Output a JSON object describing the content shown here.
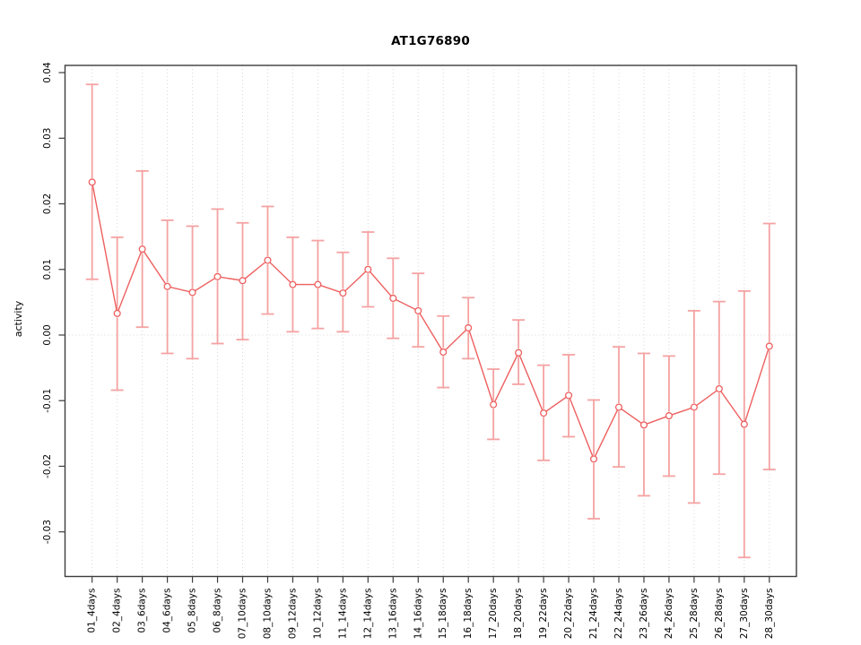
{
  "chart_data": {
    "type": "line",
    "title": "AT1G76890",
    "ylabel": "activity",
    "xlabel": "",
    "legend": "none",
    "grid": "dotted vertical line at each category; dotted horizontal line at y=0",
    "categories": [
      "01_4days",
      "02_4days",
      "03_6days",
      "04_6days",
      "05_8days",
      "06_8days",
      "07_10days",
      "08_10days",
      "09_12days",
      "10_12days",
      "11_14days",
      "12_14days",
      "13_16days",
      "14_16days",
      "15_18days",
      "16_18days",
      "17_20days",
      "18_20days",
      "19_22days",
      "20_22days",
      "21_24days",
      "22_24days",
      "23_26days",
      "24_26days",
      "25_28days",
      "26_28days",
      "27_30days",
      "28_30days"
    ],
    "series": [
      {
        "name": "activity",
        "marker": "open-circle",
        "values": [
          0.0233,
          0.0033,
          0.0131,
          0.0074,
          0.0065,
          0.0089,
          0.0083,
          0.0114,
          0.0077,
          0.0077,
          0.0064,
          0.01,
          0.0056,
          0.0037,
          -0.0026,
          0.0011,
          -0.0106,
          -0.0027,
          -0.0119,
          -0.0092,
          -0.0189,
          -0.011,
          -0.0137,
          -0.0123,
          -0.011,
          -0.0082,
          -0.0136,
          -0.0017
        ],
        "lower": [
          0.0085,
          -0.0084,
          0.0012,
          -0.0028,
          -0.0036,
          -0.0013,
          -0.0007,
          0.0032,
          0.0005,
          0.001,
          0.0005,
          0.0043,
          -0.0005,
          -0.0018,
          -0.008,
          -0.0036,
          -0.0159,
          -0.0075,
          -0.0191,
          -0.0155,
          -0.028,
          -0.0201,
          -0.0245,
          -0.0215,
          -0.0256,
          -0.0212,
          -0.0339,
          -0.0205
        ],
        "upper": [
          0.0382,
          0.0149,
          0.025,
          0.0175,
          0.0166,
          0.0192,
          0.0171,
          0.0196,
          0.0149,
          0.0144,
          0.0126,
          0.0157,
          0.0117,
          0.0094,
          0.0029,
          0.0057,
          -0.0052,
          0.0023,
          -0.0046,
          -0.003,
          -0.0099,
          -0.0018,
          -0.0028,
          -0.0032,
          0.0037,
          0.0051,
          0.0067,
          0.017
        ]
      }
    ],
    "yticks": [
      0.04,
      0.03,
      0.02,
      0.01,
      0,
      -0.01,
      -0.02,
      -0.03
    ],
    "ytick_labels": [
      "0.04",
      "0.03",
      "0.02",
      "0.01",
      "0.00",
      "-0.01",
      "-0.02",
      "-0.03"
    ],
    "ylim": [
      -0.0368,
      0.0411
    ],
    "colors": {
      "errorbar": "#f5a2a2",
      "line": "#ee5f5f",
      "marker": "#ee5f5f",
      "frame": "#3c3c3c",
      "grid": "#d8d8d8",
      "text": "#000000",
      "background": "#ffffff"
    }
  }
}
